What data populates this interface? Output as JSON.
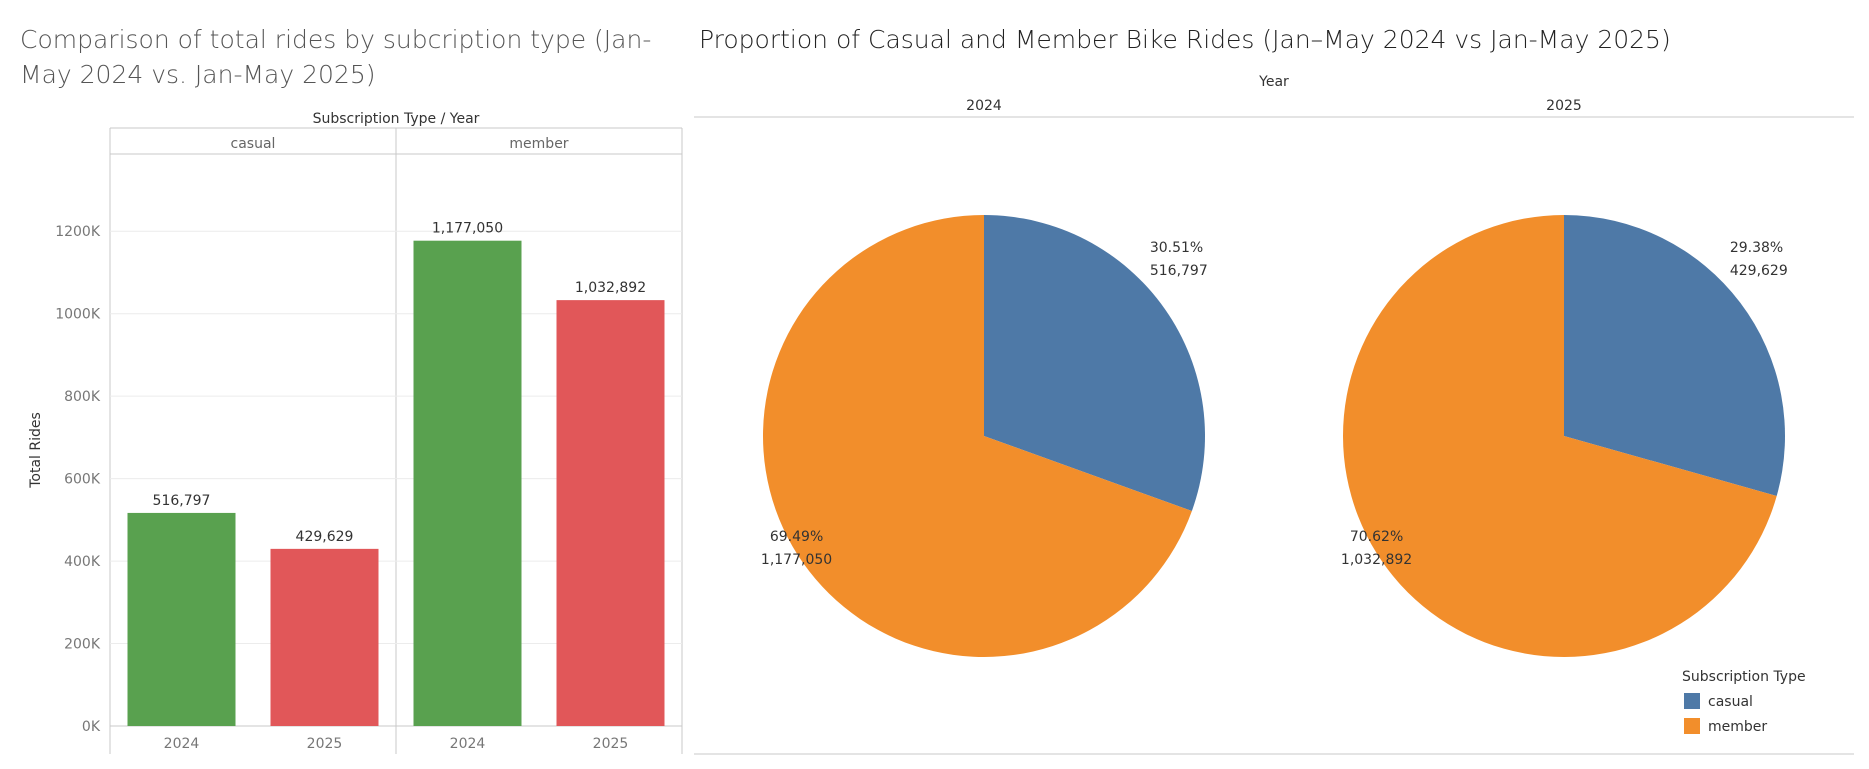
{
  "bar_chart_title": "Comparison of total rides by subcription type (Jan-May 2024 vs. Jan-May 2025)",
  "pie_chart_title": "Proportion of Casual and Member Bike Rides (Jan–May 2024 vs Jan-May 2025)",
  "colors": {
    "bar_2024": "#59a14f",
    "bar_2025": "#e15759",
    "casual": "#4e79a7",
    "member": "#f28e2b",
    "grid": "#ececec",
    "divider": "#c8c8c8"
  },
  "chart_data": [
    {
      "type": "bar",
      "title": "Comparison of total rides by subcription type (Jan-May 2024 vs. Jan-May 2025)",
      "column_header": "Subscription Type  /  Year",
      "groups": [
        "casual",
        "member"
      ],
      "categories": [
        "2024",
        "2025"
      ],
      "series": [
        {
          "group": "casual",
          "values": [
            516797,
            429629
          ],
          "labels": [
            "516,797",
            "429,629"
          ]
        },
        {
          "group": "member",
          "values": [
            1177050,
            1032892
          ],
          "labels": [
            "1,177,050",
            "1,032,892"
          ]
        }
      ],
      "ylabel": "Total Rides",
      "ylim": [
        0,
        1300000
      ],
      "yticks": [
        0,
        200000,
        400000,
        600000,
        800000,
        1000000,
        1200000
      ],
      "ytick_labels": [
        "0K",
        "200K",
        "400K",
        "600K",
        "800K",
        "1000K",
        "1200K"
      ],
      "grid": true
    },
    {
      "type": "pie",
      "title": "Proportion of Casual and Member Bike Rides (Jan–May 2024 vs Jan-May 2025)",
      "column_header": "Year",
      "legend_title": "Subscription Type",
      "legend_position": "bottom-right",
      "legend": [
        "casual",
        "member"
      ],
      "pies": [
        {
          "year": "2024",
          "slices": [
            {
              "name": "casual",
              "value": 516797,
              "percent": "30.51%",
              "label": "516,797"
            },
            {
              "name": "member",
              "value": 1177050,
              "percent": "69.49%",
              "label": "1,177,050"
            }
          ]
        },
        {
          "year": "2025",
          "slices": [
            {
              "name": "casual",
              "value": 429629,
              "percent": "29.38%",
              "label": "429,629"
            },
            {
              "name": "member",
              "value": 1032892,
              "percent": "70.62%",
              "label": "1,032,892"
            }
          ]
        }
      ]
    }
  ]
}
